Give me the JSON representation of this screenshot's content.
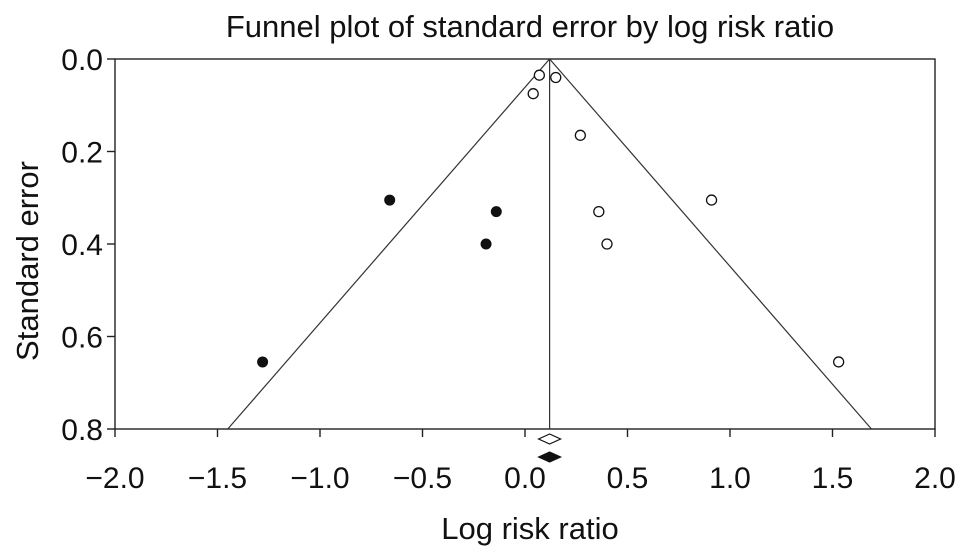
{
  "chart_data": {
    "type": "scatter",
    "title": "Funnel plot of standard error by log risk ratio",
    "xlabel": "Log risk ratio",
    "ylabel": "Standard error",
    "xlim": [
      -2.0,
      2.0
    ],
    "ylim": [
      0.8,
      0.0
    ],
    "y_inverted": true,
    "x_ticks": [
      "-2.0",
      "-1.5",
      "-1.0",
      "-0.5",
      "0.0",
      "0.5",
      "1.0",
      "1.5",
      "2.0"
    ],
    "y_ticks": [
      "0.0",
      "0.2",
      "0.4",
      "0.6",
      "0.8"
    ],
    "grid": false,
    "summary_effect": 0.12,
    "funnel_bounds": {
      "se_max": 0.8,
      "left_at_bottom": -1.45,
      "right_at_bottom": 1.69
    },
    "series": [
      {
        "marker": "open-circle",
        "points": [
          {
            "x": 0.07,
            "y": 0.035
          },
          {
            "x": 0.15,
            "y": 0.04
          },
          {
            "x": 0.04,
            "y": 0.075
          },
          {
            "x": 0.27,
            "y": 0.165
          },
          {
            "x": 0.91,
            "y": 0.305
          },
          {
            "x": 0.36,
            "y": 0.33
          },
          {
            "x": 0.4,
            "y": 0.4
          },
          {
            "x": 1.53,
            "y": 0.655
          }
        ]
      },
      {
        "marker": "filled-circle",
        "points": [
          {
            "x": -0.66,
            "y": 0.305
          },
          {
            "x": -0.14,
            "y": 0.33
          },
          {
            "x": -0.19,
            "y": 0.4
          },
          {
            "x": -1.28,
            "y": 0.655
          }
        ]
      }
    ],
    "summary_markers": [
      {
        "marker": "open-diamond",
        "x": 0.12
      },
      {
        "marker": "filled-diamond",
        "x": 0.12
      }
    ],
    "colors": {
      "axis": "#222222",
      "marker": "#111111",
      "background": "#ffffff"
    }
  }
}
